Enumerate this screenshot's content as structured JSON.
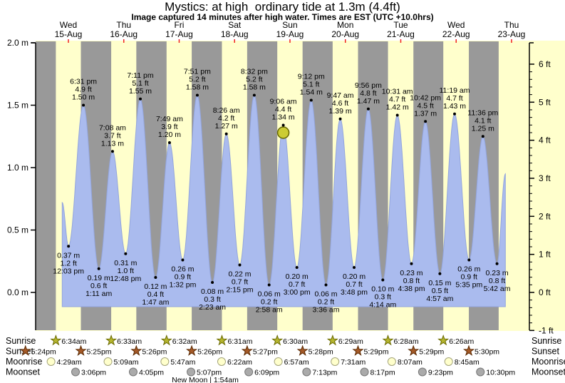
{
  "title": "Mystics: at high  ordinary tide at 1.3m (4.4ft)",
  "subtitle": "Image captured 14 minutes after high water. Times are EST (UTC +10.0hrs)",
  "days": [
    {
      "weekday": "Wed",
      "date": "15-Aug"
    },
    {
      "weekday": "Thu",
      "date": "16-Aug"
    },
    {
      "weekday": "Fri",
      "date": "17-Aug"
    },
    {
      "weekday": "Sat",
      "date": "18-Aug"
    },
    {
      "weekday": "Sun",
      "date": "19-Aug"
    },
    {
      "weekday": "Mon",
      "date": "20-Aug"
    },
    {
      "weekday": "Tue",
      "date": "21-Aug"
    },
    {
      "weekday": "Wed",
      "date": "22-Aug"
    },
    {
      "weekday": "Thu",
      "date": "23-Aug"
    }
  ],
  "y_axis_left": {
    "unit": "m",
    "labels": [
      "2.0 m",
      "1.5 m",
      "1.0 m",
      "0.5 m",
      "0.0 m"
    ],
    "values": [
      2.0,
      1.5,
      1.0,
      0.5,
      0.0
    ]
  },
  "y_axis_right": {
    "unit": "ft",
    "labels": [
      "6 ft",
      "5 ft",
      "4 ft",
      "3 ft",
      "2 ft",
      "1 ft",
      "0 ft",
      "-1 ft"
    ],
    "values": [
      6,
      5,
      4,
      3,
      2,
      1,
      0,
      -1
    ]
  },
  "chart_data": {
    "type": "area",
    "title": "Mystics: at high  ordinary tide at 1.3m (4.4ft)",
    "ylabel_left": "metres",
    "ylabel_right": "feet",
    "ylim_m": [
      -0.3048,
      2.0
    ],
    "x_span_days": [
      "Wed 15-Aug",
      "Thu 23-Aug"
    ],
    "grid": false,
    "legend": "none",
    "tide_events": [
      {
        "d": 0,
        "time": "12:03 pm",
        "type": "low",
        "m": 0.37,
        "ft": 1.2
      },
      {
        "d": 0,
        "time": "6:31 pm",
        "type": "high",
        "m": 1.5,
        "ft": 4.9
      },
      {
        "d": 1,
        "time": "1:11 am",
        "type": "low",
        "m": 0.19,
        "ft": 0.6
      },
      {
        "d": 1,
        "time": "7:08 am",
        "type": "high",
        "m": 1.13,
        "ft": 3.7
      },
      {
        "d": 1,
        "time": "12:48 pm",
        "type": "low",
        "m": 0.31,
        "ft": 1.0
      },
      {
        "d": 1,
        "time": "7:11 pm",
        "type": "high",
        "m": 1.55,
        "ft": 5.1
      },
      {
        "d": 2,
        "time": "1:47 am",
        "type": "low",
        "m": 0.12,
        "ft": 0.4
      },
      {
        "d": 2,
        "time": "7:49 am",
        "type": "high",
        "m": 1.2,
        "ft": 3.9
      },
      {
        "d": 2,
        "time": "1:32 pm",
        "type": "low",
        "m": 0.26,
        "ft": 0.9
      },
      {
        "d": 2,
        "time": "7:51 pm",
        "type": "high",
        "m": 1.58,
        "ft": 5.2
      },
      {
        "d": 3,
        "time": "2:23 am",
        "type": "low",
        "m": 0.08,
        "ft": 0.3
      },
      {
        "d": 3,
        "time": "8:26 am",
        "type": "high",
        "m": 1.27,
        "ft": 4.2
      },
      {
        "d": 3,
        "time": "2:15 pm",
        "type": "low",
        "m": 0.22,
        "ft": 0.7
      },
      {
        "d": 3,
        "time": "8:32 pm",
        "type": "high",
        "m": 1.58,
        "ft": 5.2
      },
      {
        "d": 4,
        "time": "2:58 am",
        "type": "low",
        "m": 0.06,
        "ft": 0.2
      },
      {
        "d": 4,
        "time": "9:06 am",
        "type": "high",
        "m": 1.34,
        "ft": 4.4,
        "current": true
      },
      {
        "d": 4,
        "time": "3:00 pm",
        "type": "low",
        "m": 0.2,
        "ft": 0.7
      },
      {
        "d": 4,
        "time": "9:12 pm",
        "type": "high",
        "m": 1.54,
        "ft": 5.1
      },
      {
        "d": 5,
        "time": "3:36 am",
        "type": "low",
        "m": 0.06,
        "ft": 0.2
      },
      {
        "d": 5,
        "time": "9:47 am",
        "type": "high",
        "m": 1.39,
        "ft": 4.6
      },
      {
        "d": 5,
        "time": "3:48 pm",
        "type": "low",
        "m": 0.2,
        "ft": 0.7
      },
      {
        "d": 5,
        "time": "9:56 pm",
        "type": "high",
        "m": 1.47,
        "ft": 4.8
      },
      {
        "d": 6,
        "time": "4:14 am",
        "type": "low",
        "m": 0.1,
        "ft": 0.3
      },
      {
        "d": 6,
        "time": "10:31 am",
        "type": "high",
        "m": 1.42,
        "ft": 4.7
      },
      {
        "d": 6,
        "time": "4:38 pm",
        "type": "low",
        "m": 0.23,
        "ft": 0.8
      },
      {
        "d": 6,
        "time": "10:42 pm",
        "type": "high",
        "m": 1.37,
        "ft": 4.5
      },
      {
        "d": 7,
        "time": "4:57 am",
        "type": "low",
        "m": 0.15,
        "ft": 0.5
      },
      {
        "d": 7,
        "time": "11:19 am",
        "type": "high",
        "m": 1.43,
        "ft": 4.7
      },
      {
        "d": 7,
        "time": "5:35 pm",
        "type": "low",
        "m": 0.26,
        "ft": 0.9
      },
      {
        "d": 7,
        "time": "11:36 pm",
        "type": "high",
        "m": 1.25,
        "ft": 4.1
      },
      {
        "d": 8,
        "time": "5:42 am",
        "type": "low",
        "m": 0.23,
        "ft": 0.8
      }
    ],
    "curve_edges": {
      "start": {
        "t": 0.389,
        "m": 0.72
      },
      "end": {
        "t": 8.389,
        "m": 0.95
      }
    },
    "night_bands": [
      {
        "from_d": -1,
        "from": "5:24pm",
        "to_d": 0,
        "to": "6:34am"
      },
      {
        "from_d": 0,
        "from": "5:25pm",
        "to_d": 1,
        "to": "6:33am"
      },
      {
        "from_d": 1,
        "from": "5:26pm",
        "to_d": 2,
        "to": "6:32am"
      },
      {
        "from_d": 2,
        "from": "5:26pm",
        "to_d": 3,
        "to": "6:31am"
      },
      {
        "from_d": 3,
        "from": "5:27pm",
        "to_d": 4,
        "to": "6:30am"
      },
      {
        "from_d": 4,
        "from": "5:28pm",
        "to_d": 5,
        "to": "6:29am"
      },
      {
        "from_d": 5,
        "from": "5:29pm",
        "to_d": 6,
        "to": "6:28am"
      },
      {
        "from_d": 6,
        "from": "5:29pm",
        "to_d": 7,
        "to": "6:26am"
      },
      {
        "from_d": 7,
        "from": "5:30pm",
        "to_d": 8,
        "to": "6:25am"
      }
    ]
  },
  "astro": {
    "row_labels": [
      "Sunrise",
      "Sunset",
      "Moonrise",
      "Moonset"
    ],
    "sunrise": [
      {
        "d": 0,
        "time": "6:34am"
      },
      {
        "d": 1,
        "time": "6:33am"
      },
      {
        "d": 2,
        "time": "6:32am"
      },
      {
        "d": 3,
        "time": "6:31am"
      },
      {
        "d": 4,
        "time": "6:30am"
      },
      {
        "d": 5,
        "time": "6:29am"
      },
      {
        "d": 6,
        "time": "6:28am"
      },
      {
        "d": 7,
        "time": "6:26am"
      }
    ],
    "sunset": [
      {
        "d": -1,
        "time": "5:24pm"
      },
      {
        "d": 0,
        "time": "5:25pm"
      },
      {
        "d": 1,
        "time": "5:26pm"
      },
      {
        "d": 2,
        "time": "5:26pm"
      },
      {
        "d": 3,
        "time": "5:27pm"
      },
      {
        "d": 4,
        "time": "5:28pm"
      },
      {
        "d": 5,
        "time": "5:29pm"
      },
      {
        "d": 6,
        "time": "5:29pm"
      },
      {
        "d": 7,
        "time": "5:30pm"
      }
    ],
    "moonrise": [
      {
        "d": 0,
        "time": "4:29am"
      },
      {
        "d": 1,
        "time": "5:09am"
      },
      {
        "d": 2,
        "time": "5:47am"
      },
      {
        "d": 3,
        "time": "6:22am"
      },
      {
        "d": 4,
        "time": "6:57am"
      },
      {
        "d": 5,
        "time": "7:31am"
      },
      {
        "d": 6,
        "time": "8:07am"
      },
      {
        "d": 7,
        "time": "8:45am"
      }
    ],
    "moonset": [
      {
        "d": 0,
        "time": "3:06pm"
      },
      {
        "d": 1,
        "time": "4:05pm"
      },
      {
        "d": 2,
        "time": "5:07pm"
      },
      {
        "d": 3,
        "time": "6:09pm"
      },
      {
        "d": 4,
        "time": "7:13pm"
      },
      {
        "d": 5,
        "time": "8:17pm"
      },
      {
        "d": 6,
        "time": "9:23pm"
      },
      {
        "d": 7,
        "time": "10:30pm"
      }
    ],
    "moon_phase": {
      "text": "New Moon | 1:54am",
      "d": 2.97
    }
  },
  "colors": {
    "background": "#ffffff",
    "plot_bg": "#ffffcc",
    "night_band": "#999999",
    "tide_fill": "#aabbee",
    "tide_stroke": "#93a5dd",
    "day_label": "#f02020",
    "current_marker_fill": "#cccc33",
    "current_marker_stroke": "#666600",
    "sunrise_star_fill": "#b5b52e",
    "sunrise_star_stroke": "#6b6b00",
    "sunset_star_fill": "#a55a28",
    "sunset_star_stroke": "#5a2800",
    "moonrise_fill": "#ffffcc",
    "moonrise_stroke": "#a3a37a",
    "moonset_fill": "#aaaaaa",
    "moonset_stroke": "#777777",
    "axis": "#000000"
  }
}
